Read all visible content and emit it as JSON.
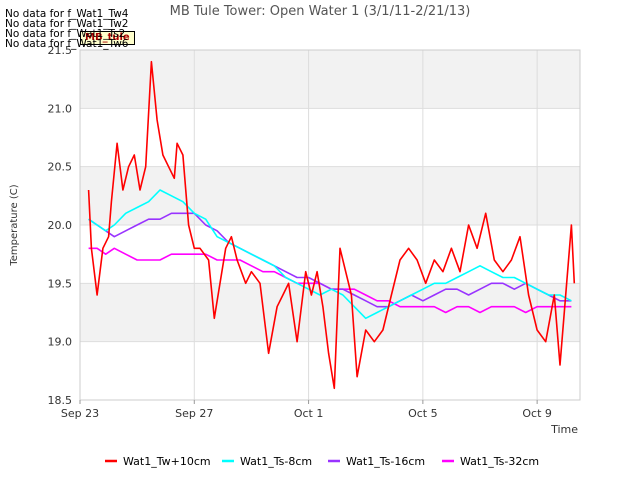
{
  "chart_data": {
    "type": "line",
    "title": "MB Tule Tower: Open Water 1 (3/1/11-2/21/13)",
    "xlabel": "Time",
    "ylabel": "Temperature (C)",
    "ylim": [
      18.5,
      21.5
    ],
    "xlim": [
      0,
      17.5
    ],
    "yticks": [
      18.5,
      19.0,
      19.5,
      20.0,
      20.5,
      21.0,
      21.5
    ],
    "ytick_labels": [
      "18.5",
      "19.0",
      "19.5",
      "20.0",
      "20.5",
      "21.0",
      "21.5"
    ],
    "xticks": [
      0,
      4,
      8,
      12,
      16
    ],
    "xtick_labels": [
      "Sep 23",
      "Sep 27",
      "Oct 1",
      "Oct 5",
      "Oct 9"
    ],
    "x_units": "days since Sep 23",
    "grid": true,
    "legend_position": "bottom",
    "series": [
      {
        "name": "Wat1_Tw+10cm",
        "color": "#ff0000",
        "x": [
          0.3,
          0.4,
          0.6,
          0.8,
          1.0,
          1.1,
          1.3,
          1.5,
          1.7,
          1.9,
          2.1,
          2.3,
          2.5,
          2.7,
          2.9,
          3.1,
          3.3,
          3.4,
          3.6,
          3.8,
          4.0,
          4.2,
          4.5,
          4.7,
          4.9,
          5.1,
          5.3,
          5.5,
          5.8,
          6.0,
          6.3,
          6.6,
          6.9,
          7.1,
          7.3,
          7.6,
          7.9,
          8.1,
          8.3,
          8.5,
          8.7,
          8.9,
          9.1,
          9.3,
          9.5,
          9.7,
          10.0,
          10.3,
          10.6,
          10.9,
          11.2,
          11.5,
          11.8,
          12.1,
          12.4,
          12.7,
          13.0,
          13.3,
          13.6,
          13.9,
          14.2,
          14.5,
          14.8,
          15.1,
          15.4,
          15.7,
          16.0,
          16.3,
          16.6,
          16.8,
          17.0,
          17.2
        ],
        "y": [
          20.3,
          19.8,
          19.4,
          19.8,
          19.9,
          20.2,
          20.7,
          20.3,
          20.5,
          20.6,
          20.3,
          20.5,
          21.4,
          20.9,
          20.6,
          20.5,
          20.4,
          20.7,
          20.6,
          20.0,
          19.8,
          19.8,
          19.7,
          19.2,
          19.5,
          19.8,
          19.9,
          19.7,
          19.5,
          19.6,
          19.5,
          18.9,
          19.3,
          19.4,
          19.5,
          19.0,
          19.6,
          19.4,
          19.6,
          19.3,
          18.9,
          18.6,
          19.8,
          19.6,
          19.4,
          18.7,
          19.1,
          19.0,
          19.1,
          19.4,
          19.7,
          19.8,
          19.7,
          19.5,
          19.7,
          19.6,
          19.8,
          19.6,
          20.0,
          19.8,
          20.1,
          19.7,
          19.6,
          19.7,
          19.9,
          19.4,
          19.1,
          19.0,
          19.4,
          18.8,
          19.4,
          20.0
        ],
        "x_end": 17.3,
        "y_end": 19.5
      },
      {
        "name": "Wat1_Ts-8cm",
        "color": "#00ffff",
        "x": [
          0.3,
          0.6,
          0.9,
          1.2,
          1.6,
          2.0,
          2.4,
          2.8,
          3.2,
          3.6,
          4.0,
          4.4,
          4.8,
          5.2,
          5.6,
          6.0,
          6.4,
          6.8,
          7.2,
          7.6,
          8.0,
          8.4,
          8.8,
          9.2,
          9.6,
          10.0,
          10.4,
          10.8,
          11.2,
          11.6,
          12.0,
          12.4,
          12.8,
          13.2,
          13.6,
          14.0,
          14.4,
          14.8,
          15.2,
          15.6,
          16.0,
          16.4,
          16.8,
          17.2
        ],
        "y": [
          20.05,
          20.0,
          19.95,
          20.0,
          20.1,
          20.15,
          20.2,
          20.3,
          20.25,
          20.2,
          20.1,
          20.05,
          19.9,
          19.85,
          19.8,
          19.75,
          19.7,
          19.65,
          19.55,
          19.5,
          19.45,
          19.4,
          19.45,
          19.4,
          19.3,
          19.2,
          19.25,
          19.3,
          19.35,
          19.4,
          19.45,
          19.5,
          19.5,
          19.55,
          19.6,
          19.65,
          19.6,
          19.55,
          19.55,
          19.5,
          19.45,
          19.4,
          19.4,
          19.35
        ]
      },
      {
        "name": "Wat1_Ts-16cm",
        "color": "#9933ff",
        "x": [
          0.3,
          0.6,
          0.9,
          1.2,
          1.6,
          2.0,
          2.4,
          2.8,
          3.2,
          3.6,
          4.0,
          4.4,
          4.8,
          5.2,
          5.6,
          6.0,
          6.4,
          6.8,
          7.2,
          7.6,
          8.0,
          8.4,
          8.8,
          9.2,
          9.6,
          10.0,
          10.4,
          10.8,
          11.2,
          11.6,
          12.0,
          12.4,
          12.8,
          13.2,
          13.6,
          14.0,
          14.4,
          14.8,
          15.2,
          15.6,
          16.0,
          16.4,
          16.8,
          17.2
        ],
        "y": [
          20.05,
          20.0,
          19.95,
          19.9,
          19.95,
          20.0,
          20.05,
          20.05,
          20.1,
          20.1,
          20.1,
          20.0,
          19.95,
          19.85,
          19.8,
          19.75,
          19.7,
          19.65,
          19.6,
          19.55,
          19.55,
          19.5,
          19.45,
          19.45,
          19.4,
          19.35,
          19.3,
          19.3,
          19.35,
          19.4,
          19.35,
          19.4,
          19.45,
          19.45,
          19.4,
          19.45,
          19.5,
          19.5,
          19.45,
          19.5,
          19.45,
          19.4,
          19.35,
          19.35
        ]
      },
      {
        "name": "Wat1_Ts-32cm",
        "color": "#ff00ff",
        "x": [
          0.3,
          0.6,
          0.9,
          1.2,
          1.6,
          2.0,
          2.4,
          2.8,
          3.2,
          3.6,
          4.0,
          4.4,
          4.8,
          5.2,
          5.6,
          6.0,
          6.4,
          6.8,
          7.2,
          7.6,
          8.0,
          8.4,
          8.8,
          9.2,
          9.6,
          10.0,
          10.4,
          10.8,
          11.2,
          11.6,
          12.0,
          12.4,
          12.8,
          13.2,
          13.6,
          14.0,
          14.4,
          14.8,
          15.2,
          15.6,
          16.0,
          16.4,
          16.8,
          17.2
        ],
        "y": [
          19.8,
          19.8,
          19.75,
          19.8,
          19.75,
          19.7,
          19.7,
          19.7,
          19.75,
          19.75,
          19.75,
          19.75,
          19.7,
          19.7,
          19.7,
          19.65,
          19.6,
          19.6,
          19.55,
          19.5,
          19.5,
          19.5,
          19.45,
          19.45,
          19.45,
          19.4,
          19.35,
          19.35,
          19.3,
          19.3,
          19.3,
          19.3,
          19.25,
          19.3,
          19.3,
          19.25,
          19.3,
          19.3,
          19.3,
          19.25,
          19.3,
          19.3,
          19.3,
          19.3
        ]
      }
    ],
    "no_data_notes": [
      "No data for f_Wat1_Tw4",
      "No data for f_Wat1_Tw2",
      "No data for f_Wat1_Ts2",
      "No data for f_Wat1_Tw6"
    ],
    "annotation": "MB_tule"
  }
}
